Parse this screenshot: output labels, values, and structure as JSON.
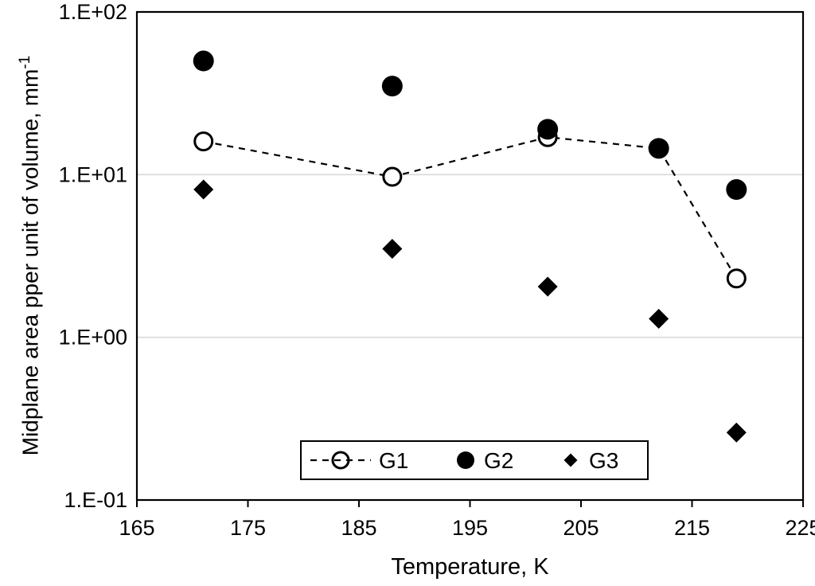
{
  "chart_data": {
    "type": "scatter",
    "title": "",
    "xlabel": "Temperature, K",
    "ylabel": "Midplane area pper unit of volume, mm",
    "ylabel_superscript": "-1",
    "yscale": "log",
    "xlim": [
      165,
      225
    ],
    "ylim": [
      0.1,
      100
    ],
    "xticks": [
      165,
      175,
      185,
      195,
      205,
      215,
      225
    ],
    "yticks": [
      100,
      10,
      1,
      0.1
    ],
    "ytick_labels": [
      "1.E+02",
      "1.E+01",
      "1.E+00",
      "1.E-01"
    ],
    "gridlines": [
      10,
      1
    ],
    "grid": "horizontal decade lines only",
    "legend_position": "inside bottom center",
    "colors": {
      "marker": "#000000",
      "gridline": "#d9d9d9",
      "background": "#ffffff",
      "axis": "#000000"
    },
    "series": [
      {
        "name": "G1",
        "marker": "open-circle",
        "line": "dashed",
        "x": [
          171,
          188,
          202,
          212,
          219
        ],
        "y": [
          16,
          9.7,
          17,
          14.5,
          2.3
        ]
      },
      {
        "name": "G2",
        "marker": "filled-circle",
        "line": "none",
        "x": [
          171,
          188,
          202,
          212,
          219
        ],
        "y": [
          50,
          35,
          19,
          14.5,
          8.1
        ]
      },
      {
        "name": "G3",
        "marker": "filled-diamond",
        "line": "none",
        "x": [
          171,
          188,
          202,
          212,
          219
        ],
        "y": [
          8.1,
          3.5,
          2.05,
          1.3,
          0.26
        ]
      }
    ]
  }
}
